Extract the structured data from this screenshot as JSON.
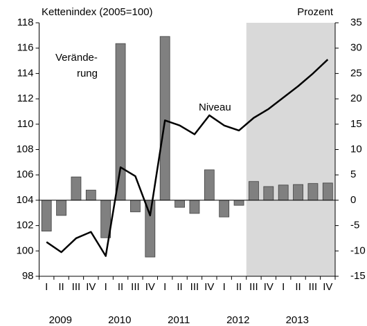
{
  "chart_data": {
    "type": "bar-line",
    "y_axis_label": "Kettenindex (2005=100)",
    "y2_axis_label": "Prozent",
    "categories": [
      "I",
      "II",
      "III",
      "IV",
      "I",
      "II",
      "III",
      "IV",
      "I",
      "II",
      "III",
      "IV",
      "I",
      "II",
      "III",
      "IV",
      "I",
      "II",
      "III",
      "IV"
    ],
    "years": [
      "2009",
      "2010",
      "2011",
      "2012",
      "2013"
    ],
    "series": [
      {
        "name": "Veränderung",
        "type": "bar",
        "axis": "y2",
        "color": "#808080",
        "values": [
          -6.1,
          -3.0,
          4.6,
          2.0,
          -7.4,
          30.9,
          -2.3,
          -11.2,
          32.3,
          -1.4,
          -2.6,
          6.0,
          -3.3,
          -1.0,
          3.7,
          2.7,
          3.0,
          3.1,
          3.3,
          3.4
        ]
      },
      {
        "name": "Niveau",
        "type": "line",
        "color": "#000000",
        "values": [
          100.7,
          99.9,
          101.0,
          101.5,
          99.6,
          106.6,
          105.9,
          102.8,
          110.3,
          109.9,
          109.2,
          110.7,
          109.9,
          109.5,
          110.5,
          111.2,
          112.1,
          113.0,
          114.0,
          115.1
        ]
      }
    ],
    "annotations": [
      "Verände-",
      "rung",
      "Niveau"
    ],
    "ylim": [
      98,
      118
    ],
    "yticks": [
      98,
      100,
      102,
      104,
      106,
      108,
      110,
      112,
      114,
      116,
      118
    ],
    "y2lim": [
      -15,
      35
    ],
    "y2ticks": [
      -15,
      -10,
      -5,
      0,
      5,
      10,
      15,
      20,
      25,
      30,
      35
    ],
    "shade": {
      "from": 14,
      "color": "#d9d9d9"
    }
  }
}
